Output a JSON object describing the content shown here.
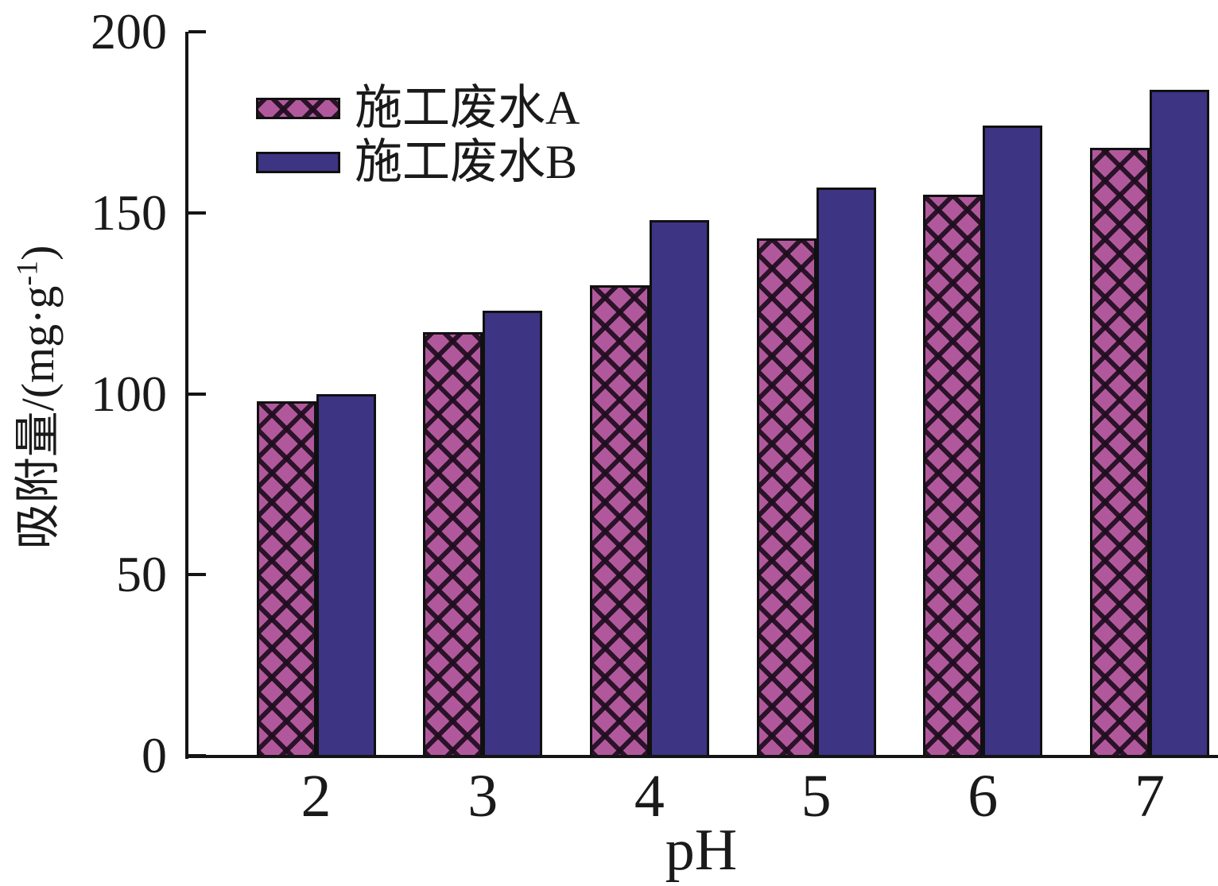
{
  "chart_data": {
    "type": "bar",
    "title": "",
    "categories": [
      "2",
      "3",
      "4",
      "5",
      "6",
      "7"
    ],
    "series": [
      {
        "name": "施工废水A",
        "values": [
          98,
          117,
          130,
          143,
          155,
          168
        ],
        "color": "#b1589c",
        "pattern": "black-diagonal-crosshatch"
      },
      {
        "name": "施工废水B",
        "values": [
          100,
          123,
          148,
          157,
          174,
          184
        ],
        "color": "#3d3484",
        "pattern": "solid"
      }
    ],
    "xlabel": "pH",
    "ylabel": "吸附量/(mg·g-1)",
    "ylabel_prefix": "吸附量/(mg·g",
    "ylabel_sup": "-1",
    "ylabel_suffix": ")",
    "ylim": [
      0,
      200
    ],
    "yticks": [
      0,
      50,
      100,
      150,
      200
    ],
    "grid": false,
    "legend_position": "upper-left-inside",
    "bar_border_color": "#101010",
    "axis_color": "#141414"
  }
}
